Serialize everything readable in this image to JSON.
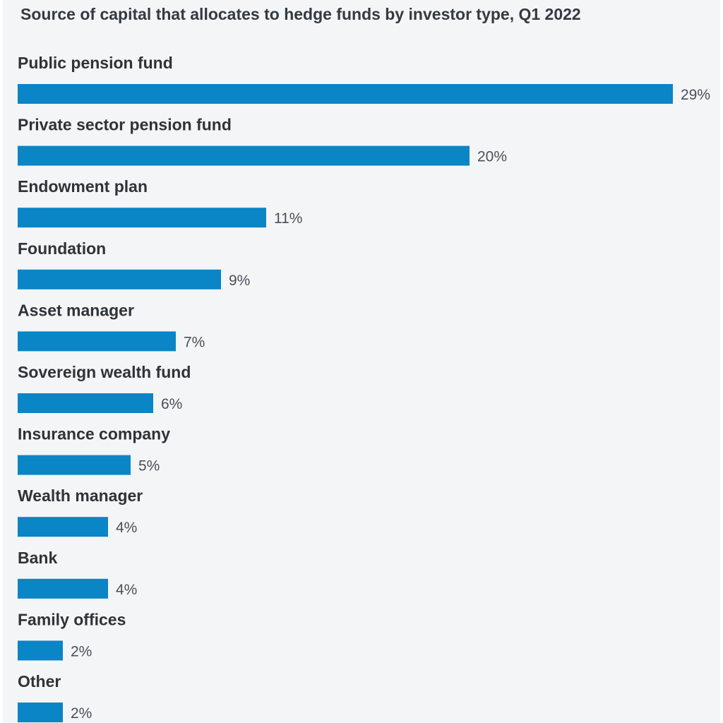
{
  "colors": {
    "bar": "#0a85c6",
    "background": "#f4f5f7",
    "title": "#333a42",
    "category_label": "#2e3338",
    "value_label": "#4a5058"
  },
  "chart_data": {
    "type": "bar",
    "orientation": "horizontal",
    "title": "Source of capital that allocates to hedge funds by investor type, Q1 2022",
    "xlabel": "",
    "ylabel": "",
    "unit": "%",
    "categories": [
      "Public pension fund",
      "Private sector pension fund",
      "Endowment plan",
      "Foundation",
      "Asset manager",
      "Sovereign wealth fund",
      "Insurance company",
      "Wealth manager",
      "Bank",
      "Family offices",
      "Other"
    ],
    "values": [
      29,
      20,
      11,
      9,
      7,
      6,
      5,
      4,
      4,
      2,
      2
    ],
    "value_labels": [
      "29%",
      "20%",
      "11%",
      "9%",
      "7%",
      "6%",
      "5%",
      "4%",
      "4%",
      "2%",
      "2%"
    ],
    "xlim": [
      0,
      29
    ],
    "grid": false,
    "legend": "none"
  }
}
